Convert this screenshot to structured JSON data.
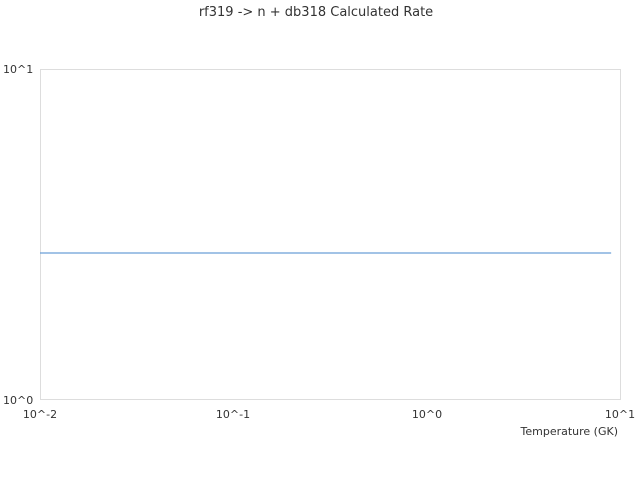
{
  "chart_data": {
    "type": "line",
    "title": "rf319 -> n + db318 Calculated Rate",
    "xlabel": "Temperature (GK)",
    "ylabel": "",
    "x_scale": "log",
    "y_scale": "log",
    "xlim": [
      0.01,
      10
    ],
    "ylim": [
      1,
      10
    ],
    "x_ticks": [
      "10^-2",
      "10^-1",
      "10^0",
      "10^1"
    ],
    "y_ticks": [
      "10^0",
      "10^1"
    ],
    "grid": false,
    "series": [
      {
        "color": "#6a9fd8",
        "x": [
          0.01,
          9
        ],
        "y": [
          2.78,
          2.78
        ]
      }
    ]
  }
}
